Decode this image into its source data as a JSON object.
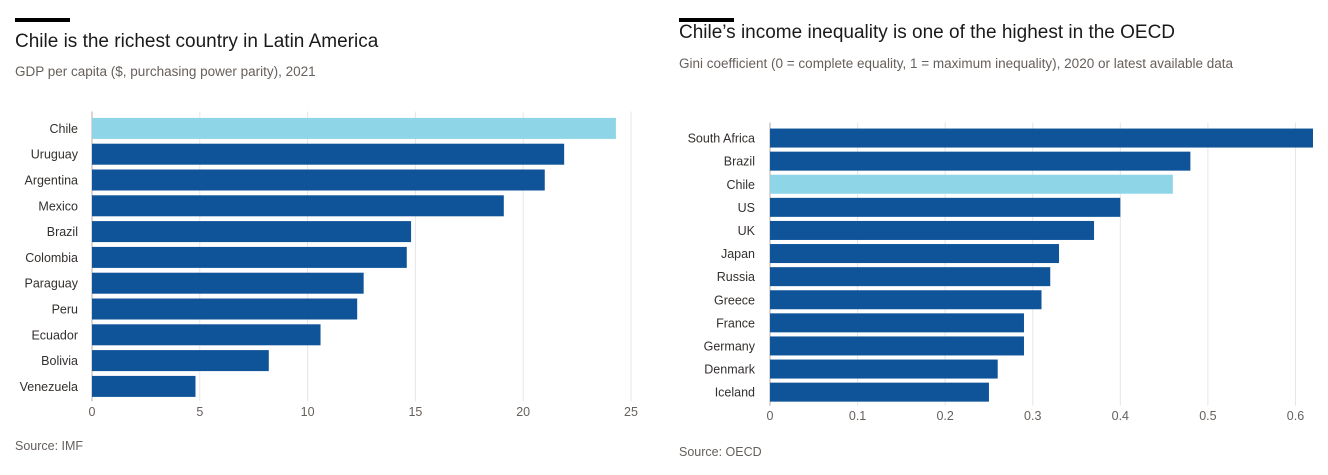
{
  "charts": [
    {
      "title": "Chile is the richest country in Latin America",
      "subtitle": "GDP per capita ($, purchasing power parity), 2021",
      "source": "Source: IMF"
    },
    {
      "title": "Chile’s income inequality is one of the highest in the OECD",
      "subtitle": "Gini coefficient (0 = complete equality, 1 = maximum inequality), 2020 or latest available data",
      "source": "Source: OECD"
    }
  ],
  "colors": {
    "highlight": "#8fd5e8",
    "default": "#0f5499",
    "grid": "#e6e6e6"
  },
  "chart_data": [
    {
      "type": "bar",
      "orientation": "horizontal",
      "title": "Chile is the richest country in Latin America",
      "subtitle": "GDP per capita ($, purchasing power parity), 2021",
      "categories": [
        "Chile",
        "Uruguay",
        "Argentina",
        "Mexico",
        "Brazil",
        "Colombia",
        "Paraguay",
        "Peru",
        "Ecuador",
        "Bolivia",
        "Venezuela"
      ],
      "values": [
        24.3,
        21.9,
        21.0,
        19.1,
        14.8,
        14.6,
        12.6,
        12.3,
        10.6,
        8.2,
        4.8
      ],
      "highlight": "Chile",
      "xlim": [
        0,
        25
      ],
      "xticks": [
        0,
        5,
        10,
        15,
        20,
        25
      ],
      "tick_labels": [
        "0",
        "5",
        "10",
        "15",
        "20",
        "25"
      ],
      "grid": true,
      "source": "Source: IMF"
    },
    {
      "type": "bar",
      "orientation": "horizontal",
      "title": "Chile’s income inequality is one of the highest in the OECD",
      "subtitle": "Gini coefficient (0 = complete equality, 1 = maximum inequality), 2020 or latest available data",
      "categories": [
        "South Africa",
        "Brazil",
        "Chile",
        "US",
        "UK",
        "Japan",
        "Russia",
        "Greece",
        "France",
        "Germany",
        "Denmark",
        "Iceland"
      ],
      "values": [
        0.62,
        0.48,
        0.46,
        0.4,
        0.37,
        0.33,
        0.32,
        0.31,
        0.29,
        0.29,
        0.26,
        0.25
      ],
      "highlight": "Chile",
      "xlim": [
        0,
        0.62
      ],
      "xticks": [
        0,
        0.1,
        0.2,
        0.3,
        0.4,
        0.5,
        0.6
      ],
      "tick_labels": [
        "0",
        "0.1",
        "0.2",
        "0.3",
        "0.4",
        "0.5",
        "0.6"
      ],
      "grid": true,
      "source": "Source: OECD"
    }
  ]
}
